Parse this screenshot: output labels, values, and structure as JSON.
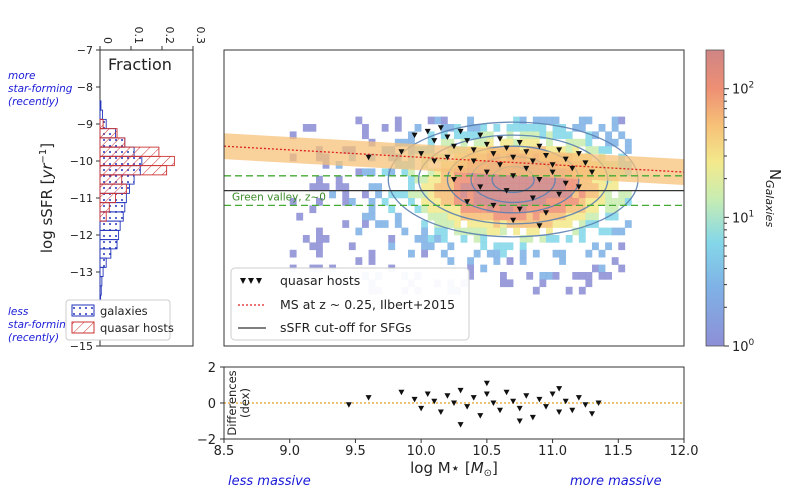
{
  "annotations": {
    "more_sf": [
      "more",
      "star-forming",
      "(recently)"
    ],
    "less_sf": [
      "less",
      "star-forming",
      "(recently)"
    ],
    "less_massive": "less massive",
    "more_massive": "more massive",
    "green_valley": "Green valley, z~0"
  },
  "colors": {
    "galaxies": "#2233bb",
    "quasar": "#cc3333",
    "ms_line": "#dd2222",
    "ms_band": "#f5c27a",
    "green": "#44aa33",
    "zero_line": "#e0a020"
  },
  "chart_data": [
    {
      "type": "bar",
      "name": "fraction-histogram",
      "title": "Fraction",
      "ylabel": "log sSFR [yr^-1]",
      "ylim": [
        -15,
        -7
      ],
      "xlim": [
        0,
        0.3
      ],
      "x_ticks": [
        "0",
        "0.1",
        "0.2",
        "0.3"
      ],
      "y_ticks": [
        "-7",
        "-8",
        "-9",
        "-10",
        "-11",
        "-12",
        "-13",
        "-14",
        "-15"
      ],
      "bin_width": 0.25,
      "series": [
        {
          "name": "galaxies",
          "bins": [
            [
              -8.5,
              0.003
            ],
            [
              -8.75,
              0.008
            ],
            [
              -9.0,
              0.02
            ],
            [
              -9.25,
              0.05
            ],
            [
              -9.5,
              0.08
            ],
            [
              -9.75,
              0.11
            ],
            [
              -10.0,
              0.135
            ],
            [
              -10.25,
              0.13
            ],
            [
              -10.5,
              0.11
            ],
            [
              -10.75,
              0.095
            ],
            [
              -11.0,
              0.085
            ],
            [
              -11.25,
              0.08
            ],
            [
              -11.5,
              0.075
            ],
            [
              -11.75,
              0.065
            ],
            [
              -12.0,
              0.06
            ],
            [
              -12.25,
              0.055
            ],
            [
              -12.5,
              0.035
            ],
            [
              -12.75,
              0.02
            ],
            [
              -13.0,
              0.01
            ],
            [
              -13.25,
              0.006
            ],
            [
              -13.5,
              0.004
            ],
            [
              -13.75,
              0.002
            ]
          ]
        },
        {
          "name": "quasar hosts",
          "bins": [
            [
              -9.0,
              0.01
            ],
            [
              -9.25,
              0.055
            ],
            [
              -9.5,
              0.08
            ],
            [
              -9.75,
              0.19
            ],
            [
              -10.0,
              0.24
            ],
            [
              -10.25,
              0.215
            ],
            [
              -10.5,
              0.07
            ],
            [
              -10.75,
              0.085
            ],
            [
              -11.0,
              0.05
            ],
            [
              -11.25,
              0.03
            ],
            [
              -11.5,
              0.02
            ]
          ]
        }
      ],
      "legend": {
        "position": "bottom",
        "entries": [
          "galaxies",
          "quasar hosts"
        ]
      }
    },
    {
      "type": "heatmap",
      "name": "main-2d-histogram",
      "xlim": [
        8.5,
        12.0
      ],
      "ylim": [
        -15,
        -7
      ],
      "colorbar": {
        "label": "N_Galaxies",
        "scale": "log",
        "range": [
          1,
          200
        ],
        "ticks": [
          "10^0",
          "10^1",
          "10^2"
        ]
      },
      "ms_line": {
        "x": [
          8.5,
          12.0
        ],
        "y": [
          -9.6,
          -10.3
        ]
      },
      "green_valley": [
        -10.4,
        -11.2
      ],
      "cutoff_line": -10.8,
      "legend": {
        "position": "lower-left",
        "entries": [
          "quasar hosts",
          "MS at z ~ 0.25, Ilbert+2015",
          "sSFR cut-off for SFGs"
        ]
      },
      "quasar_hosts": [
        [
          9.95,
          -9.3
        ],
        [
          10.05,
          -9.2
        ],
        [
          10.1,
          -9.45
        ],
        [
          10.15,
          -9.1
        ],
        [
          10.2,
          -9.35
        ],
        [
          10.25,
          -9.6
        ],
        [
          10.3,
          -9.2
        ],
        [
          10.35,
          -9.45
        ],
        [
          10.4,
          -9.7
        ],
        [
          10.45,
          -9.3
        ],
        [
          10.5,
          -9.55
        ],
        [
          10.55,
          -9.8
        ],
        [
          10.6,
          -9.4
        ],
        [
          10.65,
          -9.65
        ],
        [
          10.7,
          -9.9
        ],
        [
          10.75,
          -9.5
        ],
        [
          10.8,
          -9.75
        ],
        [
          10.85,
          -10.0
        ],
        [
          10.9,
          -9.6
        ],
        [
          10.95,
          -9.85
        ],
        [
          11.0,
          -10.1
        ],
        [
          11.05,
          -9.7
        ],
        [
          11.1,
          -9.95
        ],
        [
          11.15,
          -10.2
        ],
        [
          11.2,
          -9.8
        ],
        [
          11.25,
          -10.05
        ],
        [
          11.3,
          -10.3
        ],
        [
          10.0,
          -9.8
        ],
        [
          10.1,
          -10.0
        ],
        [
          10.2,
          -9.9
        ],
        [
          10.3,
          -10.2
        ],
        [
          10.4,
          -10.0
        ],
        [
          10.5,
          -10.3
        ],
        [
          10.6,
          -10.1
        ],
        [
          10.7,
          -10.4
        ],
        [
          10.8,
          -10.2
        ],
        [
          10.9,
          -10.5
        ],
        [
          11.0,
          -10.3
        ],
        [
          11.1,
          -10.6
        ],
        [
          10.25,
          -10.5
        ],
        [
          10.45,
          -10.7
        ],
        [
          10.65,
          -10.8
        ],
        [
          10.85,
          -11.0
        ],
        [
          11.05,
          -10.9
        ],
        [
          10.35,
          -11.1
        ],
        [
          10.55,
          -11.2
        ],
        [
          10.75,
          -11.3
        ],
        [
          10.95,
          -11.4
        ],
        [
          10.7,
          -11.6
        ],
        [
          10.9,
          -11.75
        ],
        [
          11.2,
          -10.7
        ],
        [
          9.6,
          -9.9
        ],
        [
          9.85,
          -9.75
        ]
      ],
      "xlabel": "",
      "x_ticks": []
    },
    {
      "type": "scatter",
      "name": "differences-panel",
      "ylabel": "Differences (dex)",
      "xlabel": "log M⋆ [M⊙]",
      "xlim": [
        8.5,
        12.0
      ],
      "ylim": [
        -2,
        2
      ],
      "x_ticks": [
        "8.5",
        "9.0",
        "9.5",
        "10.0",
        "10.5",
        "11.0",
        "11.5",
        "12.0"
      ],
      "y_ticks": [
        "2",
        "0",
        "−2"
      ],
      "points": [
        [
          9.45,
          -0.1
        ],
        [
          9.6,
          0.3
        ],
        [
          9.85,
          0.6
        ],
        [
          9.95,
          0.2
        ],
        [
          10.0,
          -0.3
        ],
        [
          10.05,
          0.5
        ],
        [
          10.1,
          0.1
        ],
        [
          10.15,
          -0.5
        ],
        [
          10.2,
          0.4
        ],
        [
          10.25,
          0.0
        ],
        [
          10.3,
          0.7
        ],
        [
          10.35,
          -0.2
        ],
        [
          10.4,
          0.3
        ],
        [
          10.45,
          -0.7
        ],
        [
          10.5,
          0.5
        ],
        [
          10.55,
          0.0
        ],
        [
          10.6,
          -0.4
        ],
        [
          10.65,
          0.6
        ],
        [
          10.7,
          0.1
        ],
        [
          10.75,
          -0.3
        ],
        [
          10.8,
          0.4
        ],
        [
          10.85,
          -0.8
        ],
        [
          10.9,
          0.2
        ],
        [
          10.95,
          -0.2
        ],
        [
          11.0,
          0.5
        ],
        [
          11.05,
          -0.5
        ],
        [
          11.1,
          0.1
        ],
        [
          11.15,
          -0.4
        ],
        [
          11.2,
          0.3
        ],
        [
          11.25,
          -0.1
        ],
        [
          11.3,
          -0.6
        ],
        [
          11.35,
          0.0
        ],
        [
          10.5,
          1.1
        ],
        [
          10.3,
          -1.2
        ],
        [
          10.75,
          -1.0
        ],
        [
          11.05,
          0.8
        ]
      ]
    }
  ]
}
